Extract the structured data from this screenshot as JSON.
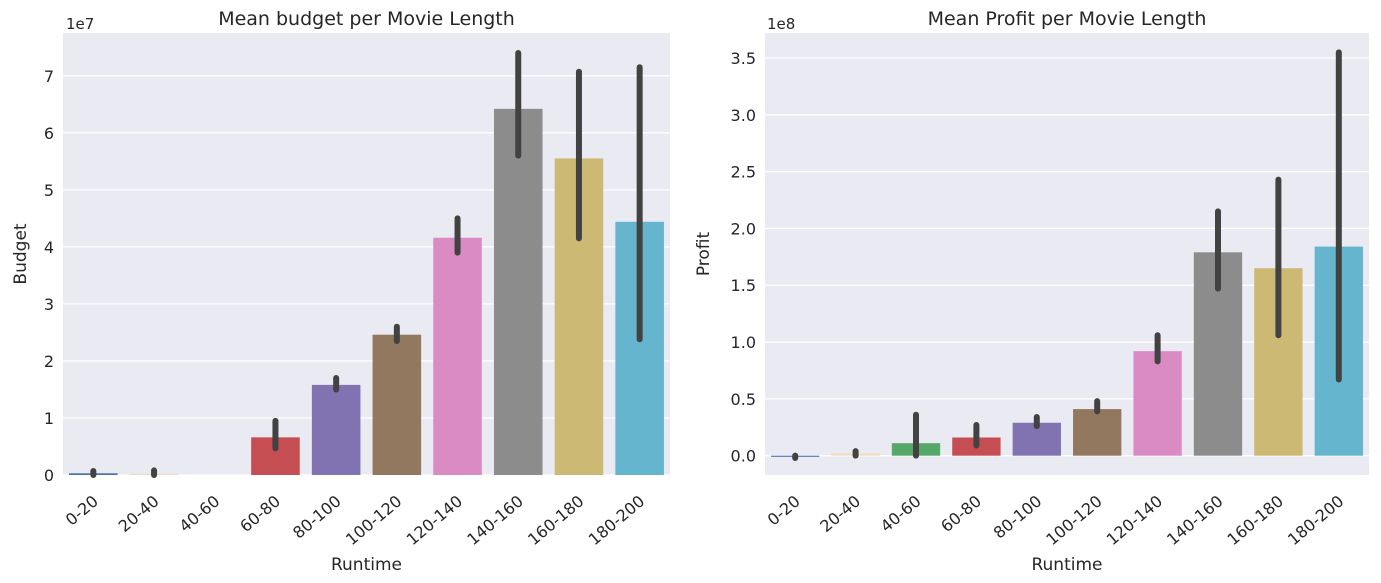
{
  "chart_data": [
    {
      "type": "bar",
      "title": "Mean budget per Movie Length",
      "xlabel": "Runtime",
      "ylabel": "Budget",
      "scale_label": "1e7",
      "scale": 10000000,
      "ylim": [
        0,
        7.75
      ],
      "yticks": [
        0,
        1,
        2,
        3,
        4,
        5,
        6,
        7
      ],
      "grid": true,
      "categories": [
        "0-20",
        "20-40",
        "40-60",
        "60-80",
        "80-100",
        "100-120",
        "120-140",
        "140-160",
        "160-180",
        "180-200"
      ],
      "values": [
        0.03,
        0.02,
        0.0,
        0.66,
        1.58,
        2.46,
        4.16,
        6.42,
        5.55,
        4.44
      ],
      "error_low": [
        0.0,
        0.0,
        null,
        0.47,
        1.5,
        2.35,
        3.9,
        5.6,
        4.15,
        2.38
      ],
      "error_high": [
        0.07,
        0.08,
        null,
        0.95,
        1.7,
        2.6,
        4.5,
        7.4,
        7.07,
        7.15
      ],
      "colors": [
        "#4c72b0",
        "#f0dcc4",
        "#55a868",
        "#c44e52",
        "#8172b2",
        "#937860",
        "#da8bc3",
        "#8c8c8c",
        "#ccb974",
        "#64b5cd"
      ]
    },
    {
      "type": "bar",
      "title": "Mean Profit per Movie Length",
      "xlabel": "Runtime",
      "ylabel": "Profit",
      "scale_label": "1e8",
      "scale": 100000000,
      "ylim": [
        -0.17,
        3.72
      ],
      "yticks": [
        0.0,
        0.5,
        1.0,
        1.5,
        2.0,
        2.5,
        3.0,
        3.5
      ],
      "ytick_labels": [
        "0.0",
        "0.5",
        "1.0",
        "1.5",
        "2.0",
        "2.5",
        "3.0",
        "3.5"
      ],
      "grid": true,
      "categories": [
        "0-20",
        "20-40",
        "40-60",
        "60-80",
        "80-100",
        "100-120",
        "120-140",
        "140-160",
        "160-180",
        "180-200"
      ],
      "values": [
        -0.01,
        0.02,
        0.11,
        0.16,
        0.29,
        0.41,
        0.92,
        1.79,
        1.65,
        1.84
      ],
      "error_low": [
        -0.02,
        0.0,
        0.0,
        0.09,
        0.26,
        0.39,
        0.83,
        1.47,
        1.06,
        0.67
      ],
      "error_high": [
        0.0,
        0.04,
        0.36,
        0.27,
        0.34,
        0.48,
        1.06,
        2.15,
        2.43,
        3.55
      ],
      "colors": [
        "#4c72b0",
        "#f0dcc4",
        "#55a868",
        "#c44e52",
        "#8172b2",
        "#937860",
        "#da8bc3",
        "#8c8c8c",
        "#ccb974",
        "#64b5cd"
      ]
    }
  ]
}
